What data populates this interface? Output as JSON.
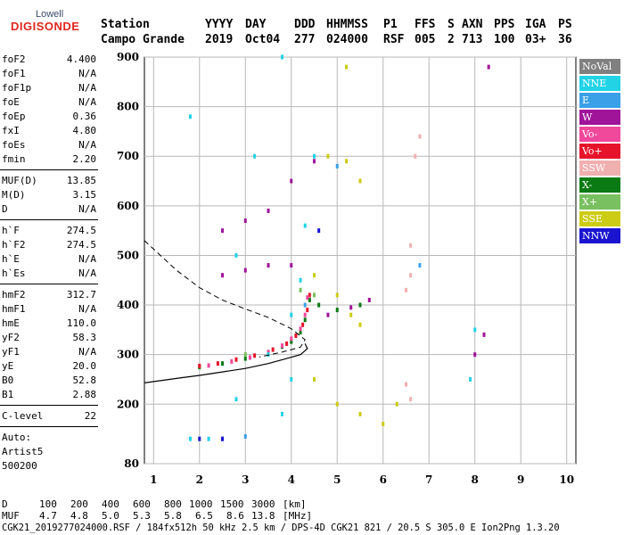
{
  "logo": {
    "line1": "Lowell",
    "line2": "DIGISONDE"
  },
  "header": {
    "labels": [
      "Station",
      "YYYY",
      "DAY",
      "DDD",
      "HHMMSS",
      "P1",
      "FFS",
      "S",
      "AXN",
      "PPS",
      "IGA",
      "PS"
    ],
    "values": [
      "Campo Grande",
      "2019",
      "Oct04",
      "277",
      "024000",
      "RSF",
      "005",
      "2",
      "713",
      "100",
      "03+",
      "36"
    ]
  },
  "params_group1": [
    {
      "name": "foF2",
      "value": "4.400"
    },
    {
      "name": "foF1",
      "value": "N/A"
    },
    {
      "name": "foF1p",
      "value": "N/A"
    },
    {
      "name": "foE",
      "value": "N/A"
    },
    {
      "name": "foEp",
      "value": "0.36"
    },
    {
      "name": "fxI",
      "value": "4.80"
    },
    {
      "name": "foEs",
      "value": "N/A"
    },
    {
      "name": "fmin",
      "value": "2.20"
    }
  ],
  "params_group2": [
    {
      "name": "MUF(D)",
      "value": "13.85"
    },
    {
      "name": "M(D)",
      "value": "3.15"
    },
    {
      "name": "D",
      "value": "N/A"
    }
  ],
  "params_group3": [
    {
      "name": "h`F",
      "value": "274.5"
    },
    {
      "name": "h`F2",
      "value": "274.5"
    },
    {
      "name": "h`E",
      "value": "N/A"
    },
    {
      "name": "h`Es",
      "value": "N/A"
    }
  ],
  "params_group4": [
    {
      "name": "hmF2",
      "value": "312.7"
    },
    {
      "name": "hmF1",
      "value": "N/A"
    },
    {
      "name": "hmE",
      "value": "110.0"
    },
    {
      "name": "yF2",
      "value": "58.3"
    },
    {
      "name": "yF1",
      "value": "N/A"
    },
    {
      "name": "yE",
      "value": "20.0"
    },
    {
      "name": "B0",
      "value": "52.8"
    },
    {
      "name": "B1",
      "value": "2.88"
    }
  ],
  "clevel": {
    "name": "C-level",
    "value": "22"
  },
  "auto": {
    "line1": "Auto:",
    "line2": "Artist5",
    "line3": "500200"
  },
  "legend": [
    {
      "label": "NoVal",
      "color": "#808080",
      "text": "#ffffff"
    },
    {
      "label": "NNE",
      "color": "#22d3e6",
      "text": "#ffffff"
    },
    {
      "label": "E",
      "color": "#3aa0e8",
      "text": "#ffffff"
    },
    {
      "label": "W",
      "color": "#a0149a",
      "text": "#ffffff"
    },
    {
      "label": "Vo-",
      "color": "#f0489a",
      "text": "#ffffff"
    },
    {
      "label": "Vo+",
      "color": "#e6142a",
      "text": "#ffffff"
    },
    {
      "label": "SSW",
      "color": "#f0b0b0",
      "text": "#ffffff"
    },
    {
      "label": "X-",
      "color": "#0a7a14",
      "text": "#ffffff"
    },
    {
      "label": "X+",
      "color": "#78c060",
      "text": "#ffffff"
    },
    {
      "label": "SSE",
      "color": "#cccc14",
      "text": "#ffffff"
    },
    {
      "label": "NNW",
      "color": "#1a14d0",
      "text": "#ffffff"
    }
  ],
  "footer": {
    "d_label": "D",
    "d_values": [
      "100",
      "200",
      "400",
      "600",
      "800",
      "1000",
      "1500",
      "3000"
    ],
    "d_unit": "[km]",
    "muf_label": "MUF",
    "muf_values": [
      "4.7",
      "4.8",
      "5.0",
      "5.3",
      "5.8",
      "6.5",
      "8.6",
      "13.8"
    ],
    "muf_unit": "[MHz]",
    "file_line": "CGK21_2019277024000.RSF / 184fx512h 50 kHz 2.5 km / DPS-4D CGK21 821 / 20.5 S 305.0 E Ion2Png 1.3.20"
  },
  "chart_data": {
    "type": "scatter",
    "x_ticks": [
      "1",
      "2",
      "3",
      "4",
      "5",
      "6",
      "7",
      "8",
      "9",
      "10"
    ],
    "y_ticks": [
      "80",
      "200",
      "300",
      "400",
      "500",
      "600",
      "700",
      "800",
      "900"
    ],
    "xlim": [
      0.8,
      10.2
    ],
    "ylim": [
      80,
      900
    ],
    "grid": true,
    "series": [
      {
        "name": "X-",
        "color": "#0a7a14",
        "points": [
          [
            2.0,
            275
          ],
          [
            2.5,
            282
          ],
          [
            3.0,
            292
          ],
          [
            3.5,
            305
          ],
          [
            3.8,
            316
          ],
          [
            4.0,
            326
          ],
          [
            4.2,
            345
          ],
          [
            4.3,
            370
          ],
          [
            4.4,
            410
          ],
          [
            4.6,
            400
          ],
          [
            5.0,
            390
          ],
          [
            5.5,
            400
          ]
        ]
      },
      {
        "name": "Vo+",
        "color": "#e6142a",
        "points": [
          [
            2.0,
            277
          ],
          [
            2.4,
            282
          ],
          [
            2.8,
            290
          ],
          [
            3.2,
            298
          ],
          [
            3.6,
            310
          ],
          [
            3.9,
            322
          ],
          [
            4.1,
            338
          ],
          [
            4.25,
            360
          ],
          [
            4.35,
            390
          ],
          [
            4.4,
            420
          ]
        ]
      },
      {
        "name": "Vo-",
        "color": "#f0489a",
        "points": [
          [
            2.2,
            278
          ],
          [
            2.7,
            286
          ],
          [
            3.1,
            294
          ],
          [
            3.5,
            305
          ],
          [
            3.8,
            318
          ],
          [
            4.0,
            332
          ],
          [
            4.2,
            352
          ],
          [
            4.3,
            380
          ],
          [
            4.35,
            415
          ]
        ]
      },
      {
        "name": "W",
        "color": "#a0149a",
        "points": [
          [
            2.5,
            550
          ],
          [
            3.0,
            570
          ],
          [
            3.5,
            590
          ],
          [
            4.0,
            650
          ],
          [
            4.5,
            690
          ],
          [
            2.5,
            460
          ],
          [
            3.0,
            470
          ],
          [
            3.5,
            480
          ],
          [
            4.0,
            480
          ],
          [
            4.8,
            380
          ],
          [
            5.3,
            395
          ],
          [
            5.7,
            410
          ],
          [
            8.0,
            300
          ],
          [
            8.2,
            340
          ],
          [
            8.3,
            880
          ]
        ]
      },
      {
        "name": "NNE",
        "color": "#22d3e6",
        "points": [
          [
            1.8,
            130
          ],
          [
            2.2,
            130
          ],
          [
            2.8,
            210
          ],
          [
            3.5,
            300
          ],
          [
            3.8,
            180
          ],
          [
            4.0,
            250
          ],
          [
            4.0,
            380
          ],
          [
            4.2,
            450
          ],
          [
            4.3,
            560
          ],
          [
            4.5,
            700
          ],
          [
            1.8,
            780
          ],
          [
            3.8,
            900
          ],
          [
            3.2,
            700
          ],
          [
            2.8,
            500
          ],
          [
            7.9,
            250
          ],
          [
            8.0,
            350
          ]
        ]
      },
      {
        "name": "SSE",
        "color": "#cccc14",
        "points": [
          [
            4.5,
            460
          ],
          [
            5.0,
            420
          ],
          [
            5.3,
            380
          ],
          [
            5.5,
            360
          ],
          [
            4.5,
            250
          ],
          [
            5.0,
            200
          ],
          [
            5.5,
            180
          ],
          [
            6.0,
            160
          ],
          [
            6.3,
            200
          ],
          [
            4.8,
            700
          ],
          [
            5.2,
            690
          ],
          [
            5.5,
            650
          ],
          [
            5.2,
            880
          ]
        ]
      },
      {
        "name": "SSW",
        "color": "#f0b0b0",
        "points": [
          [
            6.6,
            520
          ],
          [
            6.6,
            460
          ],
          [
            6.5,
            430
          ],
          [
            6.5,
            240
          ],
          [
            6.6,
            210
          ],
          [
            6.8,
            740
          ],
          [
            6.7,
            700
          ]
        ]
      },
      {
        "name": "E",
        "color": "#3aa0e8",
        "points": [
          [
            2.5,
            130
          ],
          [
            3.0,
            135
          ],
          [
            4.3,
            400
          ],
          [
            5.0,
            680
          ],
          [
            6.8,
            480
          ]
        ]
      },
      {
        "name": "X+",
        "color": "#78c060",
        "points": [
          [
            4.2,
            430
          ],
          [
            4.5,
            420
          ],
          [
            3.0,
            300
          ]
        ]
      },
      {
        "name": "NNW",
        "color": "#1a14d0",
        "points": [
          [
            2.0,
            130
          ],
          [
            2.5,
            130
          ],
          [
            4.6,
            550
          ]
        ]
      }
    ],
    "curves": {
      "dashed": [
        [
          0.8,
          530
        ],
        [
          1.5,
          470
        ],
        [
          2.0,
          435
        ],
        [
          2.5,
          410
        ],
        [
          3.0,
          392
        ],
        [
          3.5,
          375
        ],
        [
          4.0,
          352
        ],
        [
          4.3,
          330
        ],
        [
          4.2,
          315
        ],
        [
          3.8,
          305
        ],
        [
          3.3,
          295
        ]
      ],
      "solid": [
        [
          0.8,
          243
        ],
        [
          1.5,
          252
        ],
        [
          2.0,
          258
        ],
        [
          2.5,
          265
        ],
        [
          3.0,
          272
        ],
        [
          3.5,
          282
        ],
        [
          3.9,
          292
        ],
        [
          4.2,
          300
        ],
        [
          4.35,
          312
        ],
        [
          4.3,
          322
        ]
      ]
    }
  }
}
